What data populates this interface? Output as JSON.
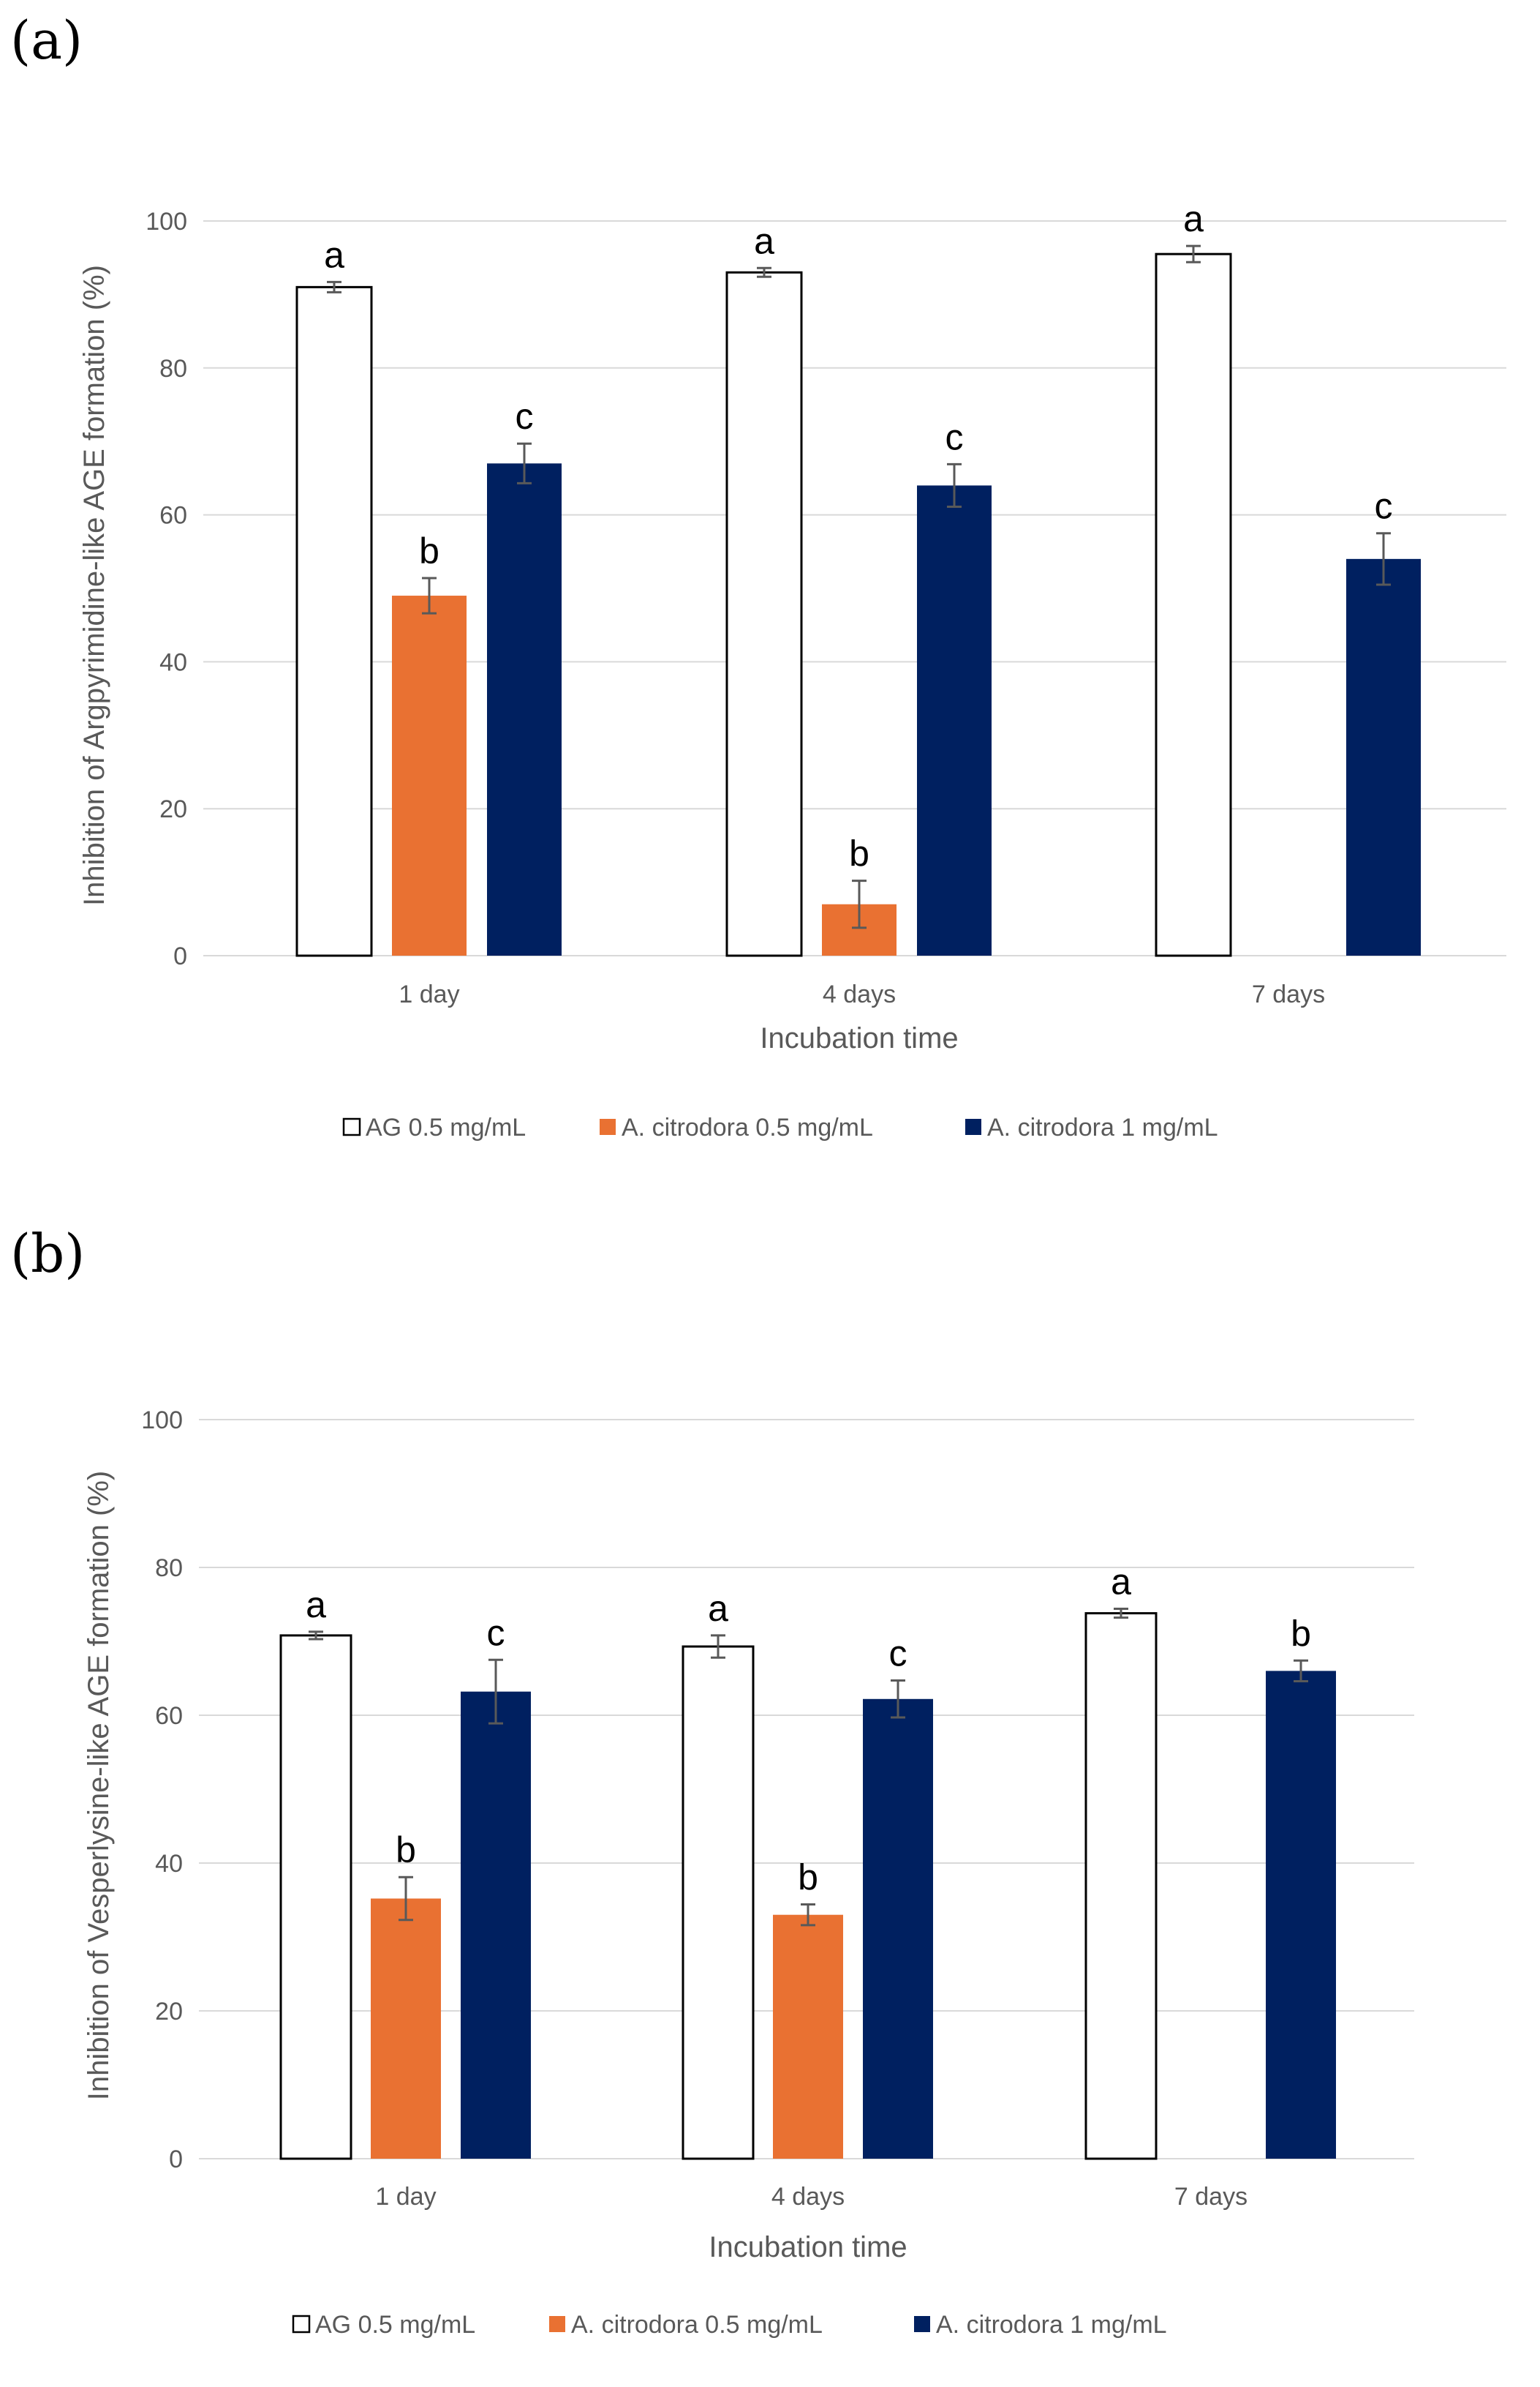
{
  "figure": {
    "panels": [
      {
        "label": "(a)"
      },
      {
        "label": "(b)"
      }
    ],
    "legend": [
      {
        "name": "AG 0.5 mg/mL",
        "color": "#ffffff"
      },
      {
        "name": "A. citrodora 0.5 mg/mL",
        "color": "#e97132"
      },
      {
        "name": "A. citrodora 1 mg/mL",
        "color": "#002060"
      }
    ]
  },
  "chart_data": [
    {
      "type": "bar",
      "panel": "(a)",
      "title": "",
      "categories": [
        "1 day",
        "4 days",
        "7 days"
      ],
      "xlabel": "Incubation time",
      "ylabel": "Inhibition of Argpyrimidine-like AGE formation (%)",
      "ylim": [
        0,
        100
      ],
      "yticks": [
        0,
        20,
        40,
        60,
        80,
        100
      ],
      "grid": true,
      "legend_position": "bottom",
      "series": [
        {
          "name": "AG 0.5 mg/mL",
          "color": "#ffffff",
          "values": [
            91,
            93,
            95.5
          ],
          "errors": [
            0.7,
            0.6,
            1.1
          ],
          "labels": [
            "a",
            "a",
            "a"
          ]
        },
        {
          "name": "A. citrodora 0.5 mg/mL",
          "color": "#e97132",
          "values": [
            49,
            7,
            null
          ],
          "errors": [
            2.4,
            3.2,
            null
          ],
          "labels": [
            "b",
            "b",
            null
          ]
        },
        {
          "name": "A. citrodora 1 mg/mL",
          "color": "#002060",
          "values": [
            67,
            64,
            54
          ],
          "errors": [
            2.7,
            2.9,
            3.5
          ],
          "labels": [
            "c",
            "c",
            "c"
          ]
        }
      ]
    },
    {
      "type": "bar",
      "panel": "(b)",
      "title": "",
      "categories": [
        "1 day",
        "4 days",
        "7 days"
      ],
      "xlabel": "Incubation time",
      "ylabel": "Inhibition of Vesperlysine-like AGE formation (%)",
      "ylim": [
        0,
        100
      ],
      "yticks": [
        0,
        20,
        40,
        60,
        80,
        100
      ],
      "grid": true,
      "legend_position": "bottom",
      "series": [
        {
          "name": "AG 0.5 mg/mL",
          "color": "#ffffff",
          "values": [
            70.8,
            69.3,
            73.8
          ],
          "errors": [
            0.5,
            1.5,
            0.6
          ],
          "labels": [
            "a",
            "a",
            "a"
          ]
        },
        {
          "name": "A. citrodora 0.5 mg/mL",
          "color": "#e97132",
          "values": [
            35.2,
            33,
            null
          ],
          "errors": [
            2.9,
            1.4,
            null
          ],
          "labels": [
            "b",
            "b",
            null
          ]
        },
        {
          "name": "A. citrodora 1 mg/mL",
          "color": "#002060",
          "values": [
            63.2,
            62.2,
            66
          ],
          "errors": [
            4.3,
            2.5,
            1.4
          ],
          "labels": [
            "c",
            "c",
            "b"
          ]
        }
      ]
    }
  ]
}
